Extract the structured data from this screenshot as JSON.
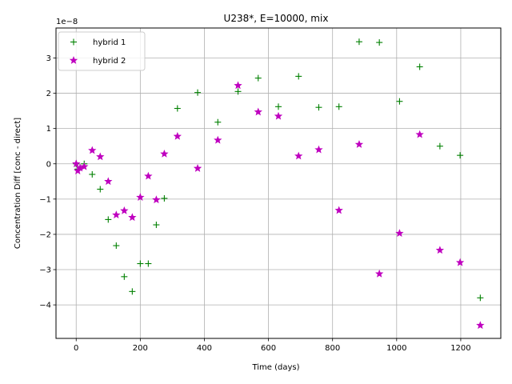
{
  "chart_data": {
    "type": "scatter",
    "title": "U238*, E=10000, mix",
    "xlabel": "Time (days)",
    "ylabel": "Concentration Diff [conc - direct]",
    "offset_label": "1e−8",
    "xlim": [
      -63,
      1325
    ],
    "ylim": [
      -4.95,
      3.85
    ],
    "y_scale_multiplier": 1e-08,
    "grid": true,
    "legend_position": "upper-left",
    "x_ticks": [
      {
        "value": 0,
        "label": "0"
      },
      {
        "value": 200,
        "label": "200"
      },
      {
        "value": 400,
        "label": "400"
      },
      {
        "value": 600,
        "label": "600"
      },
      {
        "value": 800,
        "label": "800"
      },
      {
        "value": 1000,
        "label": "1000"
      },
      {
        "value": 1200,
        "label": "1200"
      }
    ],
    "y_ticks": [
      {
        "value": -4,
        "label": "−4"
      },
      {
        "value": -3,
        "label": "−3"
      },
      {
        "value": -2,
        "label": "−2"
      },
      {
        "value": -1,
        "label": "−1"
      },
      {
        "value": 0,
        "label": "0"
      },
      {
        "value": 1,
        "label": "1"
      },
      {
        "value": 2,
        "label": "2"
      },
      {
        "value": 3,
        "label": "3"
      }
    ],
    "series": [
      {
        "name": "hybrid 1",
        "marker": "plus",
        "color": "#008000",
        "points": [
          [
            0,
            0.0
          ],
          [
            5,
            -0.15
          ],
          [
            12,
            -0.1
          ],
          [
            25,
            0.0
          ],
          [
            50,
            -0.3
          ],
          [
            75,
            -0.72
          ],
          [
            100,
            -1.58
          ],
          [
            125,
            -2.32
          ],
          [
            150,
            -3.2
          ],
          [
            175,
            -3.62
          ],
          [
            200,
            -2.83
          ],
          [
            225,
            -2.83
          ],
          [
            250,
            -1.73
          ],
          [
            275,
            -0.98
          ],
          [
            316,
            1.57
          ],
          [
            379,
            2.02
          ],
          [
            442,
            1.18
          ],
          [
            505,
            2.05
          ],
          [
            568,
            2.43
          ],
          [
            631,
            1.62
          ],
          [
            694,
            2.48
          ],
          [
            757,
            1.6
          ],
          [
            820,
            1.62
          ],
          [
            883,
            3.46
          ],
          [
            946,
            3.44
          ],
          [
            1009,
            1.77
          ],
          [
            1072,
            2.75
          ],
          [
            1135,
            0.5
          ],
          [
            1198,
            0.24
          ],
          [
            1261,
            -3.8
          ]
        ]
      },
      {
        "name": "hybrid 2",
        "marker": "star",
        "color": "#bf00bf",
        "points": [
          [
            0,
            0.0
          ],
          [
            5,
            -0.2
          ],
          [
            12,
            -0.12
          ],
          [
            25,
            -0.08
          ],
          [
            50,
            0.38
          ],
          [
            75,
            0.2
          ],
          [
            100,
            -0.5
          ],
          [
            125,
            -1.45
          ],
          [
            150,
            -1.33
          ],
          [
            175,
            -1.52
          ],
          [
            200,
            -0.95
          ],
          [
            225,
            -0.35
          ],
          [
            250,
            -1.02
          ],
          [
            275,
            0.28
          ],
          [
            316,
            0.78
          ],
          [
            379,
            -0.13
          ],
          [
            442,
            0.67
          ],
          [
            505,
            2.22
          ],
          [
            568,
            1.47
          ],
          [
            631,
            1.35
          ],
          [
            694,
            0.22
          ],
          [
            757,
            0.4
          ],
          [
            820,
            -1.32
          ],
          [
            883,
            0.55
          ],
          [
            946,
            -3.12
          ],
          [
            1009,
            -1.97
          ],
          [
            1072,
            0.83
          ],
          [
            1135,
            -2.45
          ],
          [
            1198,
            -2.8
          ],
          [
            1261,
            -4.58
          ]
        ]
      }
    ]
  }
}
